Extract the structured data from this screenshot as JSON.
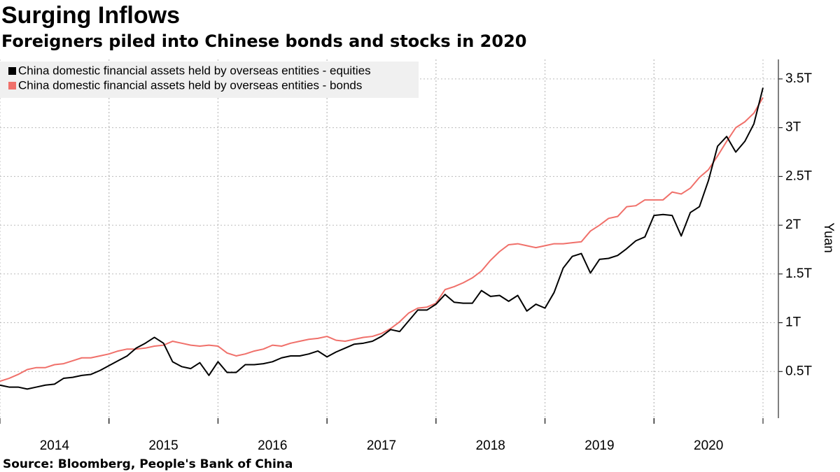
{
  "chart_data": {
    "type": "line",
    "title": "Surging Inflows",
    "subtitle": "Foreigners piled into Chinese bonds and stocks in 2020",
    "y_axis_label": "Yuan",
    "source": "Source: Bloomberg, People's Bank of China",
    "categories": [
      null,
      null,
      null,
      null,
      null,
      null,
      "2014",
      null,
      null,
      null,
      null,
      null,
      null,
      null,
      null,
      null,
      null,
      null,
      "2015",
      null,
      null,
      null,
      null,
      null,
      null,
      null,
      null,
      null,
      null,
      null,
      "2016",
      null,
      null,
      null,
      null,
      null,
      null,
      null,
      null,
      null,
      null,
      null,
      "2017",
      null,
      null,
      null,
      null,
      null,
      null,
      null,
      null,
      null,
      null,
      null,
      "2018",
      null,
      null,
      null,
      null,
      null,
      null,
      null,
      null,
      null,
      null,
      null,
      "2019",
      null,
      null,
      null,
      null,
      null,
      null,
      null,
      null,
      null,
      null,
      null,
      "2020",
      null,
      null,
      null,
      null,
      null,
      null
    ],
    "series": [
      {
        "name": "China domestic financial assets held by overseas entities - equities",
        "color": "#000000",
        "values": [
          0.36,
          0.34,
          0.34,
          0.32,
          0.34,
          0.36,
          0.37,
          0.43,
          0.44,
          0.46,
          0.47,
          0.51,
          0.56,
          0.61,
          0.66,
          0.74,
          0.79,
          0.85,
          0.79,
          0.6,
          0.55,
          0.53,
          0.59,
          0.46,
          0.6,
          0.49,
          0.49,
          0.57,
          0.57,
          0.58,
          0.6,
          0.64,
          0.66,
          0.66,
          0.68,
          0.71,
          0.65,
          0.7,
          0.74,
          0.78,
          0.79,
          0.81,
          0.86,
          0.93,
          0.91,
          1.02,
          1.13,
          1.13,
          1.19,
          1.29,
          1.21,
          1.2,
          1.2,
          1.33,
          1.27,
          1.28,
          1.22,
          1.28,
          1.12,
          1.19,
          1.15,
          1.31,
          1.56,
          1.68,
          1.71,
          1.51,
          1.65,
          1.66,
          1.69,
          1.76,
          1.84,
          1.88,
          2.1,
          2.11,
          2.1,
          1.89,
          2.13,
          2.19,
          2.46,
          2.81,
          2.91,
          2.75,
          2.86,
          3.04,
          3.41
        ]
      },
      {
        "name": "China domestic financial assets held by overseas entities - bonds",
        "color": "#f0706a",
        "values": [
          0.4,
          0.43,
          0.47,
          0.52,
          0.54,
          0.54,
          0.57,
          0.58,
          0.61,
          0.64,
          0.64,
          0.66,
          0.68,
          0.71,
          0.73,
          0.73,
          0.74,
          0.76,
          0.77,
          0.81,
          0.79,
          0.77,
          0.76,
          0.77,
          0.76,
          0.69,
          0.66,
          0.68,
          0.71,
          0.73,
          0.77,
          0.76,
          0.79,
          0.81,
          0.83,
          0.84,
          0.86,
          0.82,
          0.81,
          0.83,
          0.85,
          0.86,
          0.89,
          0.94,
          1.01,
          1.1,
          1.15,
          1.16,
          1.2,
          1.34,
          1.37,
          1.41,
          1.46,
          1.53,
          1.64,
          1.73,
          1.8,
          1.81,
          1.79,
          1.77,
          1.79,
          1.81,
          1.81,
          1.82,
          1.83,
          1.94,
          2.0,
          2.07,
          2.09,
          2.19,
          2.2,
          2.26,
          2.26,
          2.26,
          2.34,
          2.32,
          2.38,
          2.49,
          2.57,
          2.71,
          2.86,
          3.0,
          3.06,
          3.15,
          3.31
        ]
      }
    ],
    "ylim": [
      0,
      3.7
    ],
    "yticks": [
      {
        "value": 0.5,
        "label": "0.5T"
      },
      {
        "value": 1,
        "label": "1T"
      },
      {
        "value": 1.5,
        "label": "1.5T"
      },
      {
        "value": 2,
        "label": "2T"
      },
      {
        "value": 2.5,
        "label": "2.5T"
      },
      {
        "value": 3,
        "label": "3T"
      },
      {
        "value": 3.5,
        "label": "3.5T"
      }
    ],
    "grid": true,
    "legend": "top-left"
  }
}
